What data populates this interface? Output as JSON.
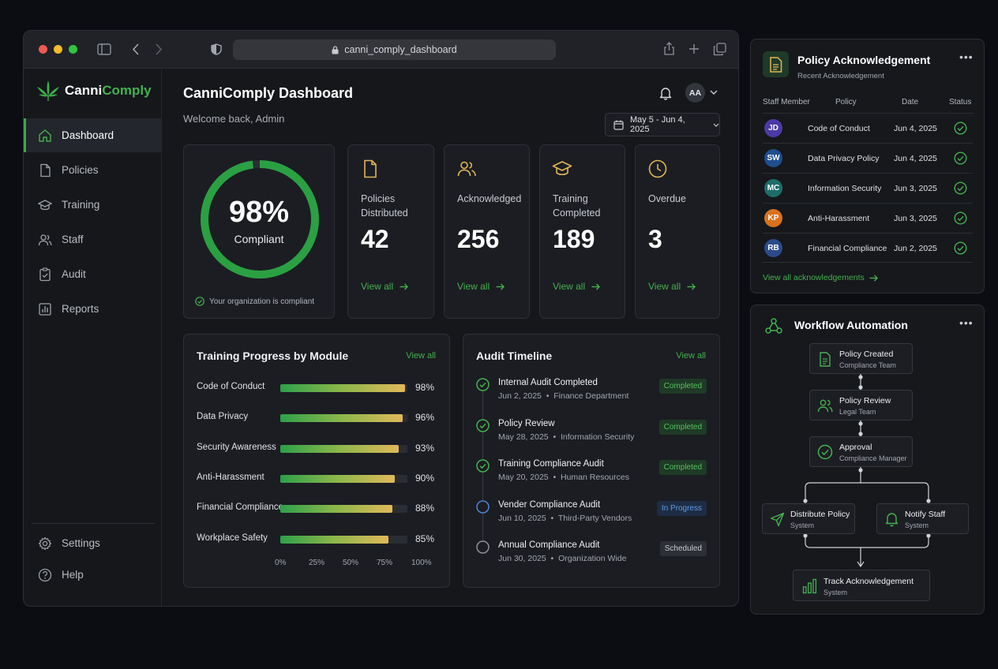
{
  "browser": {
    "url": "canni_comply_dashboard"
  },
  "brand": {
    "name_prefix": "Canni",
    "name_suffix": "Comply",
    "accent": "#46b04f"
  },
  "sidebar": {
    "items": [
      {
        "label": "Dashboard",
        "icon": "home-icon",
        "active": true
      },
      {
        "label": "Policies",
        "icon": "document-icon"
      },
      {
        "label": "Training",
        "icon": "graduation-cap-icon"
      },
      {
        "label": "Staff",
        "icon": "users-icon"
      },
      {
        "label": "Audit",
        "icon": "clipboard-check-icon"
      },
      {
        "label": "Reports",
        "icon": "bar-chart-icon"
      }
    ],
    "bottom": [
      {
        "label": "Settings",
        "icon": "gear-icon"
      },
      {
        "label": "Help",
        "icon": "help-icon"
      }
    ]
  },
  "header": {
    "title": "CanniComply Dashboard",
    "subtitle": "Welcome back, Admin",
    "avatar_initials": "AA",
    "date_range": "May 5 - Jun 4, 2025"
  },
  "compliance": {
    "percent": 98,
    "percent_text": "98%",
    "label": "Compliant",
    "note": "Your organization is compliant"
  },
  "stats": [
    {
      "label": "Policies Distributed",
      "value": "42",
      "link": "View all",
      "icon": "document-icon"
    },
    {
      "label": "Acknowledged",
      "value": "256",
      "link": "View all",
      "icon": "users-icon"
    },
    {
      "label": "Training Completed",
      "value": "189",
      "link": "View all",
      "icon": "graduation-cap-icon"
    },
    {
      "label": "Overdue",
      "value": "3",
      "link": "View all",
      "icon": "clock-icon"
    }
  ],
  "training": {
    "title": "Training Progress by Module",
    "link": "View all",
    "chart_data": {
      "type": "bar",
      "orientation": "horizontal",
      "categories": [
        "Code of Conduct",
        "Data Privacy",
        "Security Awareness",
        "Anti-Harassment",
        "Financial Compliance",
        "Workplace Safety"
      ],
      "values": [
        98,
        96,
        93,
        90,
        88,
        85
      ],
      "value_labels": [
        "98%",
        "96%",
        "93%",
        "90%",
        "88%",
        "85%"
      ],
      "xlim": [
        0,
        100
      ],
      "ticks": [
        "0%",
        "25%",
        "50%",
        "75%",
        "100%"
      ]
    }
  },
  "audit": {
    "title": "Audit Timeline",
    "link": "View all",
    "items": [
      {
        "title": "Internal Audit Completed",
        "date": "Jun 2, 2025",
        "dept": "Finance Department",
        "status": "Completed",
        "state": "done"
      },
      {
        "title": "Policy Review",
        "date": "May 28, 2025",
        "dept": "Information Security",
        "status": "Completed",
        "state": "done"
      },
      {
        "title": "Training Compliance Audit",
        "date": "May 20, 2025",
        "dept": "Human Resources",
        "status": "Completed",
        "state": "done"
      },
      {
        "title": "Vender Compliance Audit",
        "date": "Jun 10, 2025",
        "dept": "Third-Party Vendors",
        "status": "In Progress",
        "state": "progress"
      },
      {
        "title": "Annual Compliance Audit",
        "date": "Jun 30, 2025",
        "dept": "Organization Wide",
        "status": "Scheduled",
        "state": "scheduled"
      }
    ]
  },
  "acknowledgement": {
    "title": "Policy Acknowledgement",
    "subtitle": "Recent Acknowledgement",
    "columns": [
      "Staff Member",
      "Policy",
      "Date",
      "Status"
    ],
    "rows": [
      {
        "initials": "JD",
        "policy": "Code of Conduct",
        "date": "Jun 4, 2025",
        "color": "#4b3aa6"
      },
      {
        "initials": "SW",
        "policy": "Data Privacy Policy",
        "date": "Jun 4, 2025",
        "color": "#1f4f8f"
      },
      {
        "initials": "MC",
        "policy": "Information Security",
        "date": "Jun 3, 2025",
        "color": "#1f6d6a"
      },
      {
        "initials": "KP",
        "policy": "Anti-Harassment",
        "date": "Jun 3, 2025",
        "color": "#d9711f"
      },
      {
        "initials": "RB",
        "policy": "Financial Compliance",
        "date": "Jun 2, 2025",
        "color": "#2b4a8a"
      }
    ],
    "link": "View all acknowledgements"
  },
  "workflow": {
    "title": "Workflow Automation",
    "steps": [
      {
        "title": "Policy Created",
        "sub": "Compliance Team",
        "icon": "document-icon"
      },
      {
        "title": "Policy Review",
        "sub": "Legal Team",
        "icon": "users-icon"
      },
      {
        "title": "Approval",
        "sub": "Compliance Manager",
        "icon": "check-circle-icon"
      },
      {
        "title": "Distribute Policy",
        "sub": "System",
        "icon": "send-icon"
      },
      {
        "title": "Notify Staff",
        "sub": "System",
        "icon": "bell-icon"
      },
      {
        "title": "Track Acknowledgement",
        "sub": "System",
        "icon": "bar-chart-icon"
      }
    ]
  }
}
